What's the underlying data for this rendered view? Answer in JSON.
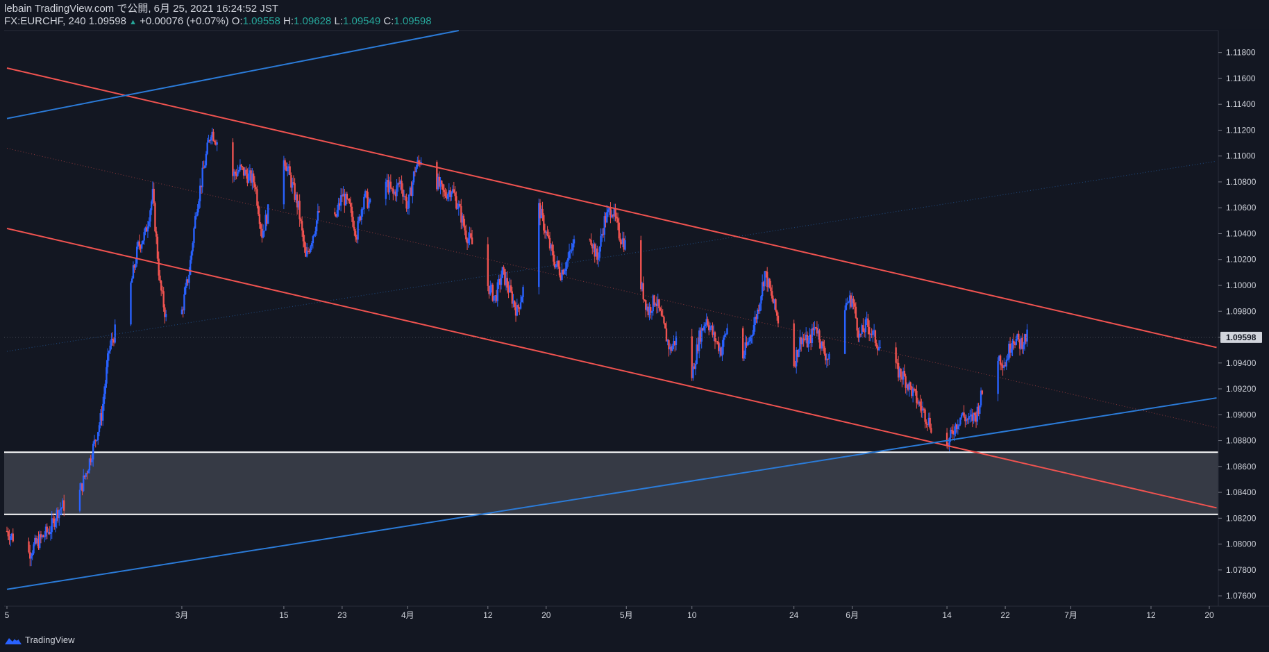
{
  "header": {
    "publish_line": "lebain TradingView.com で公開, 6月 25, 2021 16:24:52 JST",
    "symbol": "FX:EURCHF, 240",
    "last": "1.09598",
    "change": "+0.00076 (+0.07%)",
    "o_label": "O:",
    "o_value": "1.09558",
    "h_label": "H:",
    "h_value": "1.09628",
    "l_label": "L:",
    "l_value": "1.09549",
    "c_label": "C:",
    "c_value": "1.09598"
  },
  "footer": {
    "brand": "TradingView",
    "icon": "tradingview-logo-icon"
  },
  "colors": {
    "background": "#131722",
    "up": "#2962ff",
    "down": "#ef5350",
    "channel": "#f05350",
    "trendline": "#2b7bd8",
    "zone_fill": "#363a45",
    "zone_border": "#ffffff",
    "axis_text": "#d1d4dc",
    "price_label_bg": "#d1d4dc",
    "price_label_text": "#131722"
  },
  "chart_data": {
    "type": "candlestick",
    "symbol": "FX:EURCHF",
    "interval": "240",
    "y_ticks": [
      "1.11800",
      "1.11600",
      "1.11400",
      "1.11200",
      "1.11000",
      "1.10800",
      "1.10600",
      "1.10400",
      "1.10200",
      "1.10000",
      "1.09800",
      "1.09600",
      "1.09400",
      "1.09200",
      "1.09000",
      "1.08800",
      "1.08600",
      "1.08400",
      "1.08200",
      "1.08000",
      "1.07800",
      "1.07600"
    ],
    "ylim": [
      1.0752,
      1.1197
    ],
    "last_price_label": "1.09598",
    "x_ticks": [
      "5",
      "3月",
      "15",
      "23",
      "4月",
      "12",
      "20",
      "5月",
      "10",
      "24",
      "6月",
      "14",
      "22",
      "7月",
      "12",
      "20"
    ],
    "x_tick_dates": [
      "2021-02-05",
      "2021-03-01",
      "2021-03-15",
      "2021-03-23",
      "2021-04-01",
      "2021-04-12",
      "2021-04-20",
      "2021-05-01",
      "2021-05-10",
      "2021-05-24",
      "2021-06-01",
      "2021-06-14",
      "2021-06-22",
      "2021-07-01",
      "2021-07-12",
      "2021-07-20"
    ],
    "last_bar_date": "2021-06-25",
    "close_path": [
      [
        "2021-02-05",
        1.081
      ],
      [
        "2021-02-08",
        1.0793
      ],
      [
        "2021-02-09",
        1.08
      ],
      [
        "2021-02-11",
        1.0812
      ],
      [
        "2021-02-12",
        1.0826
      ],
      [
        "2021-02-15",
        1.084
      ],
      [
        "2021-02-16",
        1.0858
      ],
      [
        "2021-02-17",
        1.0878
      ],
      [
        "2021-02-18",
        1.09
      ],
      [
        "2021-02-19",
        1.095
      ],
      [
        "2021-02-22",
        1.1
      ],
      [
        "2021-02-23",
        1.103
      ],
      [
        "2021-02-24",
        1.104
      ],
      [
        "2021-02-25",
        1.107
      ],
      [
        "2021-02-26",
        1.1
      ],
      [
        "2021-02-27",
        1.097
      ],
      [
        "2021-03-01",
        1.098
      ],
      [
        "2021-03-02",
        1.101
      ],
      [
        "2021-03-03",
        1.106
      ],
      [
        "2021-03-04",
        1.109
      ],
      [
        "2021-03-05",
        1.112
      ],
      [
        "2021-03-06",
        1.111
      ],
      [
        "2021-03-07",
        1.108
      ],
      [
        "2021-03-09",
        1.109
      ],
      [
        "2021-03-11",
        1.108
      ],
      [
        "2021-03-12",
        1.104
      ],
      [
        "2021-03-13",
        1.106
      ],
      [
        "2021-03-14",
        1.109
      ],
      [
        "2021-03-15",
        1.11
      ],
      [
        "2021-03-16",
        1.108
      ],
      [
        "2021-03-17",
        1.106
      ],
      [
        "2021-03-18",
        1.102
      ],
      [
        "2021-03-19",
        1.104
      ],
      [
        "2021-03-20",
        1.106
      ],
      [
        "2021-03-22",
        1.105
      ],
      [
        "2021-03-23",
        1.107
      ],
      [
        "2021-03-24",
        1.106
      ],
      [
        "2021-03-25",
        1.104
      ],
      [
        "2021-03-26",
        1.107
      ],
      [
        "2021-03-27",
        1.106
      ],
      [
        "2021-03-29",
        1.108
      ],
      [
        "2021-03-30",
        1.107
      ],
      [
        "2021-03-31",
        1.108
      ],
      [
        "2021-04-01",
        1.106
      ],
      [
        "2021-04-02",
        1.109
      ],
      [
        "2021-04-03",
        1.11
      ],
      [
        "2021-04-05",
        1.108
      ],
      [
        "2021-04-06",
        1.107
      ],
      [
        "2021-04-07",
        1.1075
      ],
      [
        "2021-04-08",
        1.106
      ],
      [
        "2021-04-09",
        1.104
      ],
      [
        "2021-04-10",
        1.103
      ],
      [
        "2021-04-11",
        1.101
      ],
      [
        "2021-04-12",
        1.1
      ],
      [
        "2021-04-13",
        1.099
      ],
      [
        "2021-04-14",
        1.101
      ],
      [
        "2021-04-15",
        1.0995
      ],
      [
        "2021-04-16",
        1.098
      ],
      [
        "2021-04-17",
        1.1
      ],
      [
        "2021-04-18",
        1.104
      ],
      [
        "2021-04-19",
        1.106
      ],
      [
        "2021-04-20",
        1.104
      ],
      [
        "2021-04-21",
        1.102
      ],
      [
        "2021-04-22",
        1.101
      ],
      [
        "2021-04-23",
        1.102
      ],
      [
        "2021-04-24",
        1.1035
      ],
      [
        "2021-04-25",
        1.103
      ],
      [
        "2021-04-26",
        1.104
      ],
      [
        "2021-04-27",
        1.102
      ],
      [
        "2021-04-28",
        1.105
      ],
      [
        "2021-04-29",
        1.106
      ],
      [
        "2021-04-30",
        1.104
      ],
      [
        "2021-05-01",
        1.103
      ],
      [
        "2021-05-02",
        1.101
      ],
      [
        "2021-05-03",
        1.1
      ],
      [
        "2021-05-04",
        1.098
      ],
      [
        "2021-05-05",
        1.099
      ],
      [
        "2021-05-06",
        1.097
      ],
      [
        "2021-05-07",
        1.095
      ],
      [
        "2021-05-08",
        1.096
      ],
      [
        "2021-05-09",
        1.094
      ],
      [
        "2021-05-10",
        1.093
      ],
      [
        "2021-05-11",
        1.096
      ],
      [
        "2021-05-12",
        1.0975
      ],
      [
        "2021-05-13",
        1.096
      ],
      [
        "2021-05-14",
        1.095
      ],
      [
        "2021-05-15",
        1.097
      ],
      [
        "2021-05-16",
        1.094
      ],
      [
        "2021-05-17",
        1.0945
      ],
      [
        "2021-05-18",
        1.096
      ],
      [
        "2021-05-19",
        1.098
      ],
      [
        "2021-05-20",
        1.101
      ],
      [
        "2021-05-21",
        1.099
      ],
      [
        "2021-05-22",
        1.097
      ],
      [
        "2021-05-23",
        1.095
      ],
      [
        "2021-05-24",
        1.094
      ],
      [
        "2021-05-25",
        1.096
      ],
      [
        "2021-05-26",
        1.0955
      ],
      [
        "2021-05-27",
        1.097
      ],
      [
        "2021-05-28",
        1.095
      ],
      [
        "2021-05-29",
        1.094
      ],
      [
        "2021-05-30",
        1.097
      ],
      [
        "2021-05-31",
        1.0985
      ],
      [
        "2021-06-01",
        1.099
      ],
      [
        "2021-06-02",
        1.096
      ],
      [
        "2021-06-03",
        1.097
      ],
      [
        "2021-06-04",
        1.096
      ],
      [
        "2021-06-05",
        1.095
      ],
      [
        "2021-06-06",
        1.094
      ],
      [
        "2021-06-07",
        1.0935
      ],
      [
        "2021-06-08",
        1.093
      ],
      [
        "2021-06-09",
        1.092
      ],
      [
        "2021-06-10",
        1.091
      ],
      [
        "2021-06-11",
        1.09
      ],
      [
        "2021-06-12",
        1.089
      ],
      [
        "2021-06-13",
        1.088
      ],
      [
        "2021-06-14",
        1.0875
      ],
      [
        "2021-06-15",
        1.089
      ],
      [
        "2021-06-16",
        1.09
      ],
      [
        "2021-06-17",
        1.0895
      ],
      [
        "2021-06-18",
        1.09
      ],
      [
        "2021-06-19",
        1.092
      ],
      [
        "2021-06-20",
        1.0935
      ],
      [
        "2021-06-21",
        1.0945
      ],
      [
        "2021-06-22",
        1.094
      ],
      [
        "2021-06-23",
        1.096
      ],
      [
        "2021-06-24",
        1.0955
      ],
      [
        "2021-06-25",
        1.096
      ]
    ],
    "zone": {
      "upper": 1.0871,
      "lower": 1.0823
    },
    "channel_lines": [
      {
        "name": "channel-upper",
        "from": [
          "2021-02-05",
          1.1168
        ],
        "to": [
          "2021-07-21",
          1.0952
        ]
      },
      {
        "name": "channel-lower",
        "from": [
          "2021-02-05",
          1.1044
        ],
        "to": [
          "2021-07-21",
          1.0828
        ]
      }
    ],
    "trend_lines": [
      {
        "name": "trendline-upper",
        "from": [
          "2021-02-05",
          1.1129
        ],
        "to": [
          "2021-04-08",
          1.1197
        ]
      },
      {
        "name": "trendline-lower",
        "from": [
          "2021-02-05",
          1.0765
        ],
        "to": [
          "2021-07-21",
          1.0913
        ]
      }
    ],
    "dotted_lines": [
      {
        "name": "channel-midline",
        "from": [
          "2021-02-05",
          1.1106
        ],
        "to": [
          "2021-07-21",
          1.089
        ]
      },
      {
        "name": "trend-midline",
        "from": [
          "2021-02-05",
          1.0949
        ],
        "to": [
          "2021-07-21",
          1.1096
        ]
      }
    ]
  }
}
